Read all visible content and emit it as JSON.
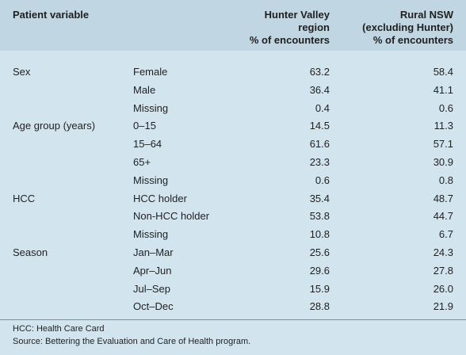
{
  "header": {
    "patient_variable": "Patient variable",
    "hunter_valley": [
      "Hunter Valley",
      "region",
      "% of encounters"
    ],
    "rural_nsw": [
      "Rural NSW",
      "(excluding Hunter)",
      "% of encounters"
    ]
  },
  "rows": [
    {
      "variable": "Sex",
      "sub": "Female",
      "hunter": "63.2",
      "rural": "58.4"
    },
    {
      "variable": "",
      "sub": "Male",
      "hunter": "36.4",
      "rural": "41.1"
    },
    {
      "variable": "",
      "sub": "Missing",
      "hunter": "0.4",
      "rural": "0.6"
    },
    {
      "variable": "Age group (years)",
      "sub": "0–15",
      "hunter": "14.5",
      "rural": "11.3"
    },
    {
      "variable": "",
      "sub": "15–64",
      "hunter": "61.6",
      "rural": "57.1"
    },
    {
      "variable": "",
      "sub": "65+",
      "hunter": "23.3",
      "rural": "30.9"
    },
    {
      "variable": "",
      "sub": "Missing",
      "hunter": "0.6",
      "rural": "0.8"
    },
    {
      "variable": "HCC",
      "sub": "HCC holder",
      "hunter": "35.4",
      "rural": "48.7"
    },
    {
      "variable": "",
      "sub": "Non-HCC holder",
      "hunter": "53.8",
      "rural": "44.7"
    },
    {
      "variable": "",
      "sub": "Missing",
      "hunter": "10.8",
      "rural": "6.7"
    },
    {
      "variable": "Season",
      "sub": "Jan–Mar",
      "hunter": "25.6",
      "rural": "24.3"
    },
    {
      "variable": "",
      "sub": "Apr–Jun",
      "hunter": "29.6",
      "rural": "27.8"
    },
    {
      "variable": "",
      "sub": "Jul–Sep",
      "hunter": "15.9",
      "rural": "26.0"
    },
    {
      "variable": "",
      "sub": "Oct–Dec",
      "hunter": "28.8",
      "rural": "21.9"
    }
  ],
  "notes": {
    "abbreviation": "HCC: Health Care Card",
    "source": "Source: Bettering the Evaluation and Care of Health program."
  }
}
